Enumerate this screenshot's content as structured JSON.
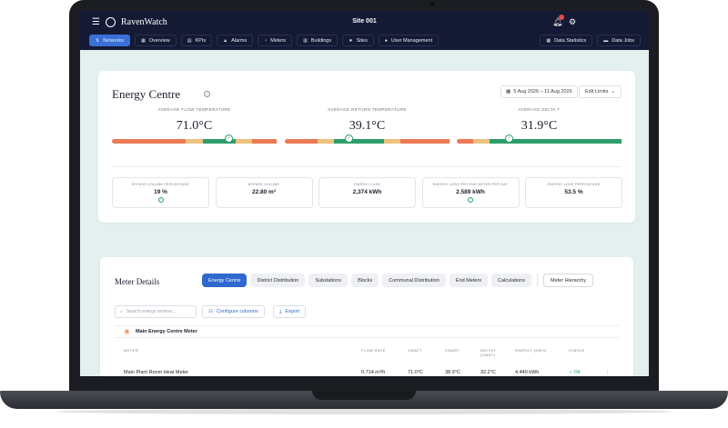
{
  "app": {
    "brand": "RavenWatch",
    "site_title": "Site 001",
    "notification_count": ""
  },
  "nav": {
    "items": [
      {
        "label": "Networks",
        "icon": "network-icon",
        "active": true
      },
      {
        "label": "Overview",
        "icon": "grid-icon"
      },
      {
        "label": "KPIs",
        "icon": "chart-icon"
      },
      {
        "label": "Alarms",
        "icon": "bell-icon"
      },
      {
        "label": "Meters",
        "icon": "gauge-icon"
      },
      {
        "label": "Buildings",
        "icon": "building-icon"
      },
      {
        "label": "Sites",
        "icon": "star-icon"
      },
      {
        "label": "User Management",
        "icon": "user-icon"
      }
    ],
    "right_items": [
      {
        "label": "Data Statistics",
        "icon": "table-icon"
      },
      {
        "label": "Data Jobs",
        "icon": "folder-icon"
      }
    ]
  },
  "energy_centre": {
    "title": "Energy Centre",
    "date_range": "5 Aug 2026 – 11 Aug 2026",
    "edit_limits_label": "Edit Limits",
    "metrics": [
      {
        "label": "Average Flow Temperature",
        "value": "71.0°C",
        "marker_fraction": 0.71,
        "segments": [
          [
            "red",
            0.45
          ],
          [
            "amb",
            0.1
          ],
          [
            "grn",
            0.2
          ],
          [
            "amb",
            0.1
          ],
          [
            "red",
            0.15
          ]
        ]
      },
      {
        "label": "Average Return Temperature",
        "value": "39.1°C",
        "marker_fraction": 0.39,
        "segments": [
          [
            "red",
            0.2
          ],
          [
            "amb",
            0.1
          ],
          [
            "grn",
            0.3
          ],
          [
            "amb",
            0.1
          ],
          [
            "red",
            0.3
          ]
        ]
      },
      {
        "label": "Average Delta T",
        "value": "31.9°C",
        "marker_fraction": 0.32,
        "segments": [
          [
            "red",
            0.1
          ],
          [
            "amb",
            0.1
          ],
          [
            "grn",
            0.8
          ]
        ]
      }
    ],
    "stats": [
      {
        "label": "Bypass Volume Percentage",
        "value": "19 %",
        "ok": true
      },
      {
        "label": "Bypass Volume",
        "value": "22.80 m³",
        "ok": false
      },
      {
        "label": "Energy Loss",
        "value": "2,374 kWh",
        "ok": false
      },
      {
        "label": "Energy Loss Per End Meter Per Day",
        "value": "2.589 kWh",
        "ok": true
      },
      {
        "label": "Energy Loss Percentage",
        "value": "53.5 %",
        "ok": false
      }
    ]
  },
  "meter_details": {
    "title": "Meter Details",
    "tabs": [
      "Energy Centre",
      "District Distribution",
      "Substations",
      "Blocks",
      "Communal Distribution",
      "End Meters",
      "Calculations"
    ],
    "hierarchy_label": "Meter Hierarchy",
    "search_placeholder": "Search energy centres...",
    "configure_label": "Configure columns",
    "export_label": "Export",
    "group_label": "Main Energy Centre Meter",
    "columns": [
      "Meter",
      "Flow Rate",
      "VWAFT",
      "VWART",
      "DeltaT (VWΔT)",
      "Energy (kWh)",
      "Status"
    ],
    "row": {
      "meter": "Main Plant Room Heat Meter",
      "flow_rate": "0.714 m³/h",
      "vwaft": "71.0°C",
      "vwart": "38.9°C",
      "delta_t": "32.2°C",
      "energy": "4,440 kWh",
      "status": "OK"
    }
  },
  "colors": {
    "topbar": "#141a33",
    "accent": "#3a6fd8",
    "ok_green": "#2d9d6a",
    "warn_amber": "#ecc27e",
    "bad_red": "#ea7a56",
    "screen_bg": "#e4eff0"
  }
}
